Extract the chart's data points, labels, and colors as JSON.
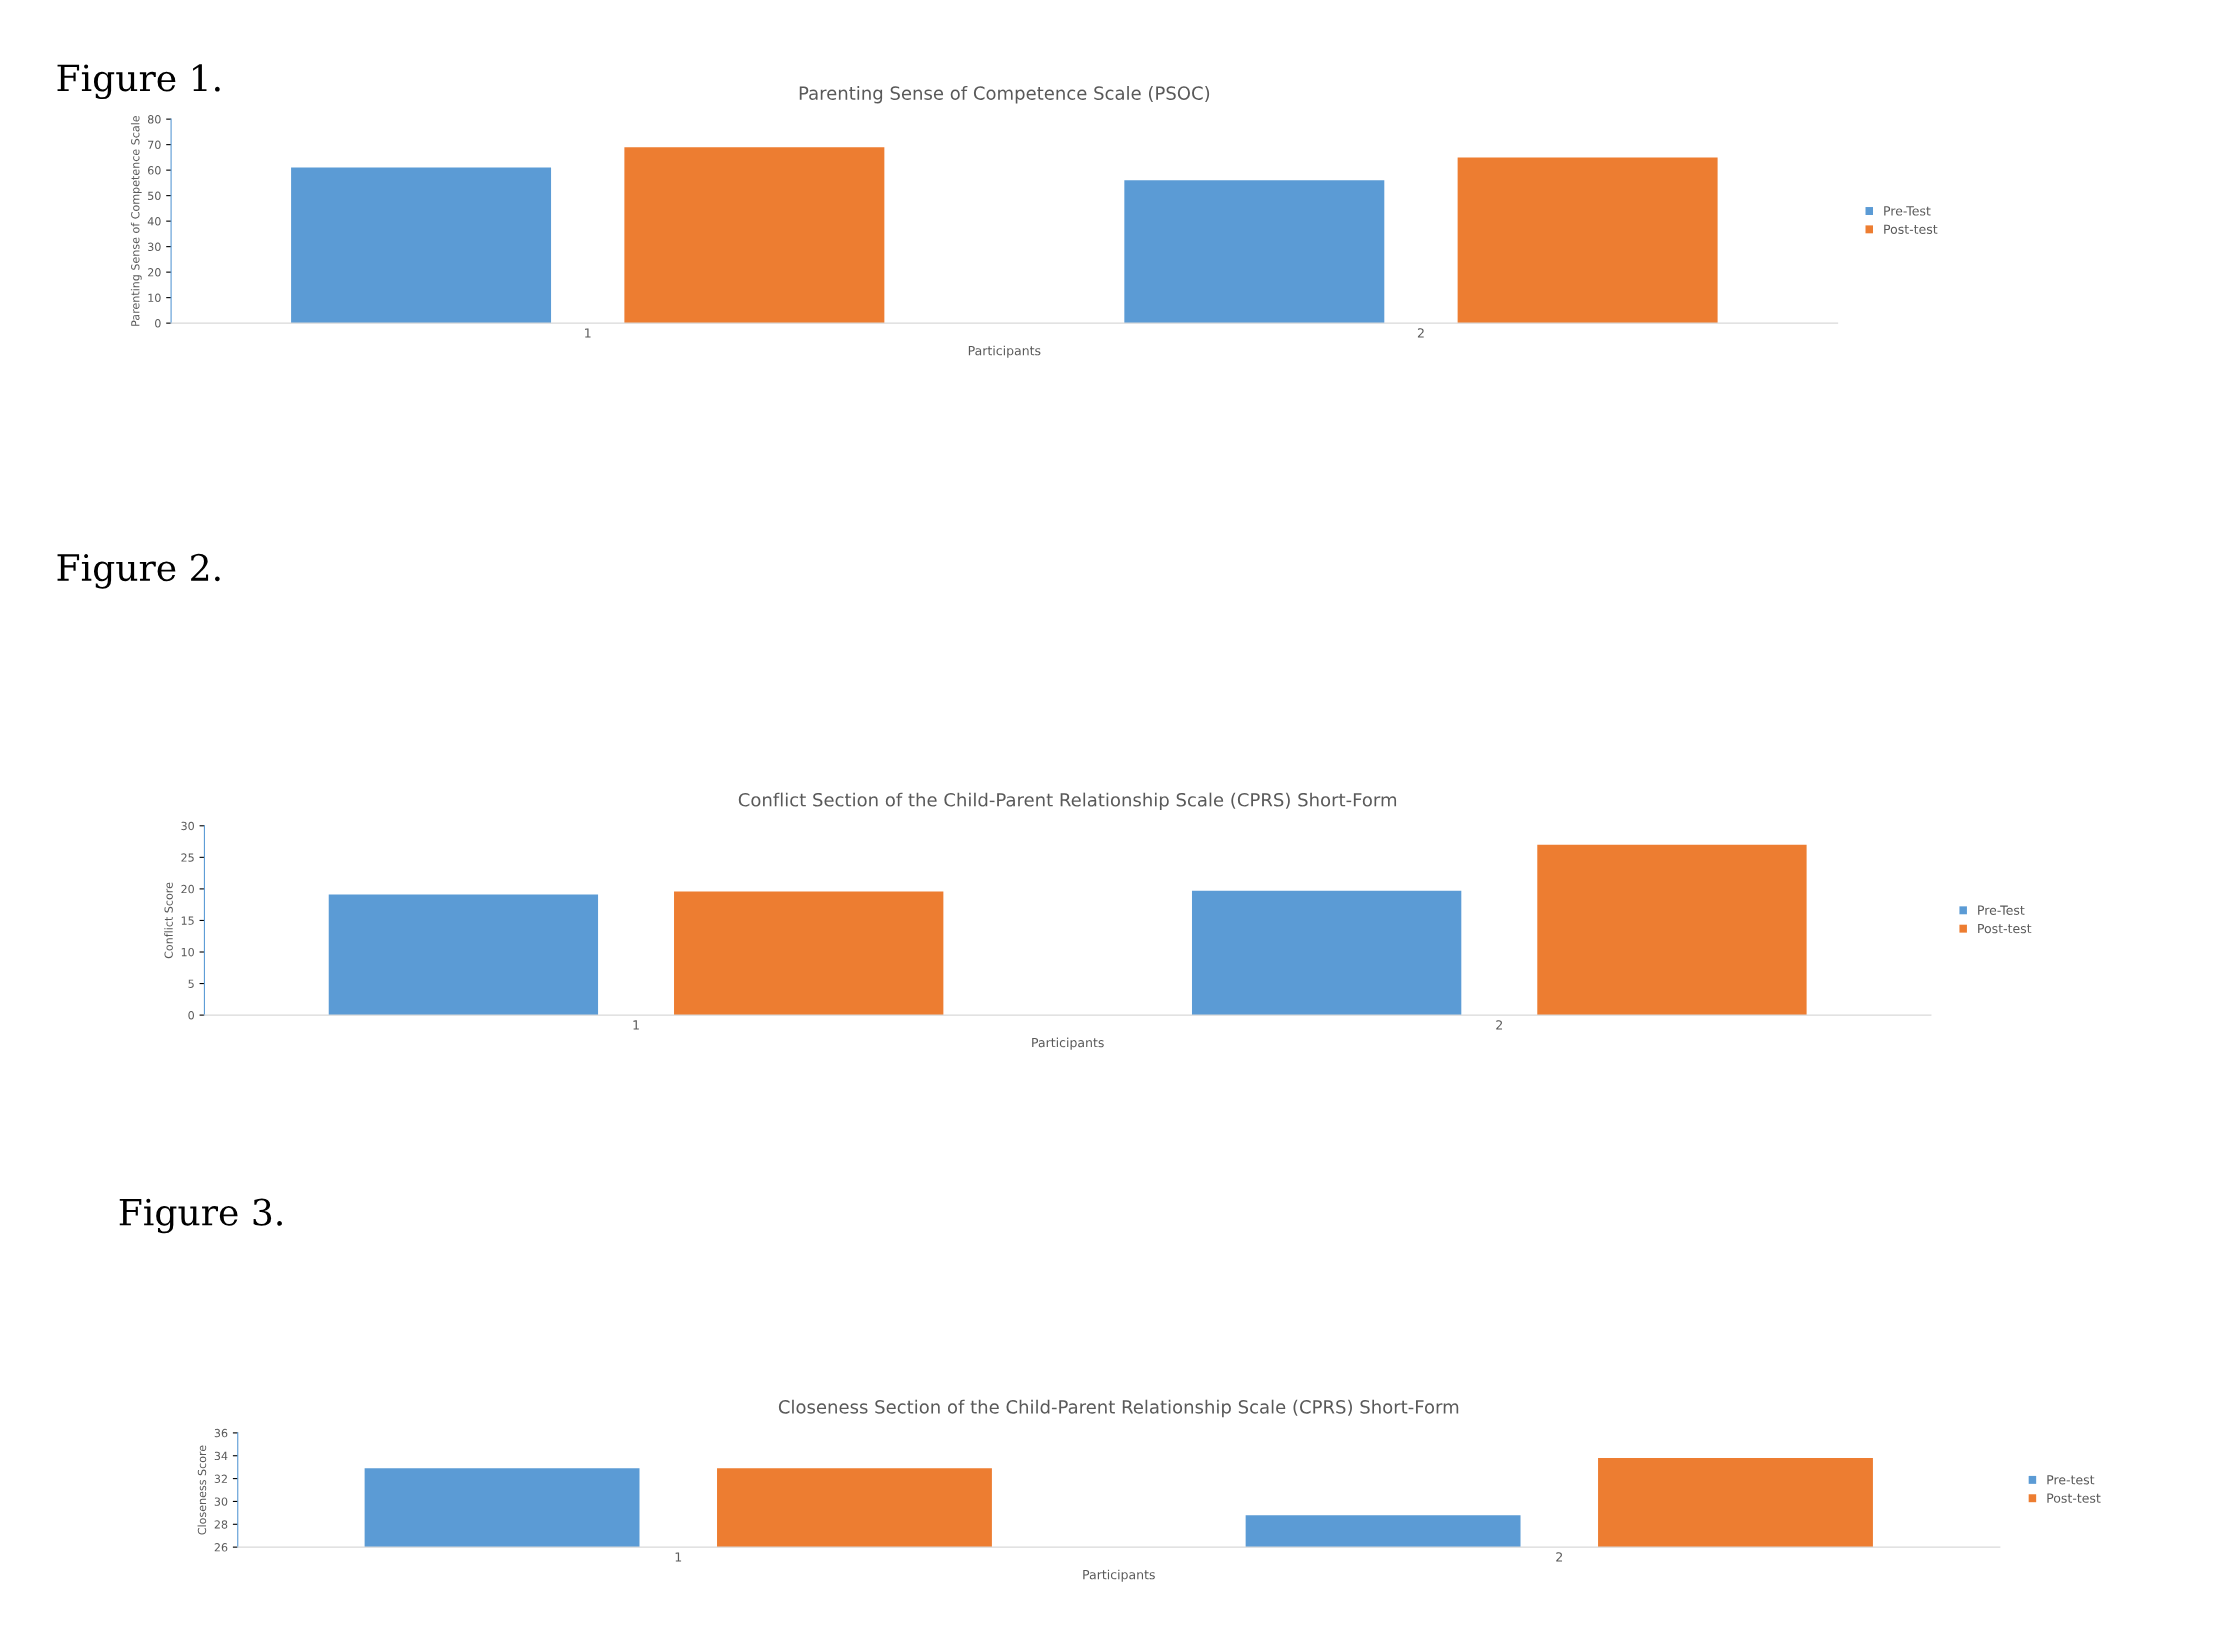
{
  "chart_data": [
    {
      "type": "bar",
      "title": "Parenting Sense of Competence Scale (PSOC)",
      "xlabel": "Participants",
      "ylabel": "Parenting Sense of Competence Scale",
      "categories": [
        "1",
        "2"
      ],
      "annotations": [
        "Figure 1."
      ],
      "series": [
        {
          "name": "Pre-Test",
          "color": "#5b9bd5",
          "values": [
            61,
            56
          ]
        },
        {
          "name": "Post-test",
          "color": "#ed7d31",
          "values": [
            69,
            65
          ]
        }
      ],
      "ylim": [
        0,
        80
      ],
      "yticks": [
        0,
        10,
        20,
        30,
        40,
        50,
        60,
        70,
        80
      ],
      "grid": false,
      "legend": "right"
    },
    {
      "type": "bar",
      "title": "Conflict Section of the Child-Parent Relationship Scale (CPRS) Short-Form",
      "xlabel": "Participants",
      "ylabel": "Conflict Score",
      "categories": [
        "1",
        "2"
      ],
      "annotations": [
        "Figure 2."
      ],
      "series": [
        {
          "name": "Pre-Test",
          "color": "#5b9bd5",
          "values": [
            19.1,
            19.7
          ]
        },
        {
          "name": "Post-test",
          "color": "#ed7d31",
          "values": [
            19.6,
            27
          ]
        }
      ],
      "ylim": [
        0,
        30
      ],
      "yticks": [
        0,
        5,
        10,
        15,
        20,
        25,
        30
      ],
      "grid": false,
      "legend": "right"
    },
    {
      "type": "bar",
      "title": "Closeness Section of the Child-Parent Relationship Scale (CPRS) Short-Form",
      "xlabel": "Participants",
      "ylabel": "Closeness Score",
      "categories": [
        "1",
        "2"
      ],
      "annotations": [
        "Figure 3."
      ],
      "series": [
        {
          "name": "Pre-test",
          "color": "#5b9bd5",
          "values": [
            32.9,
            28.8
          ]
        },
        {
          "name": "Post-test",
          "color": "#ed7d31",
          "values": [
            32.9,
            33.8
          ]
        }
      ],
      "ylim": [
        26,
        36
      ],
      "yticks": [
        26,
        28,
        30,
        32,
        34,
        36
      ],
      "grid": false,
      "legend": "right"
    }
  ]
}
